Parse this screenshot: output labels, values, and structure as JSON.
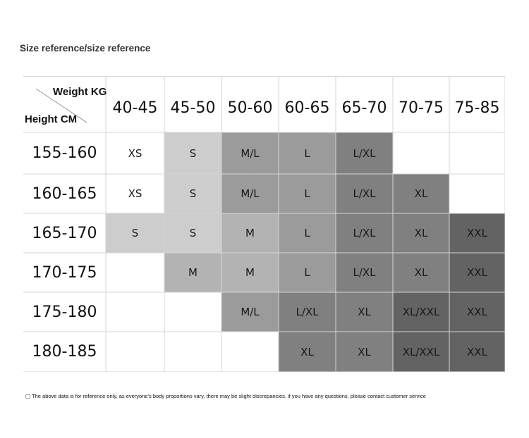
{
  "title": "Size reference/size reference",
  "corner": {
    "weight_label": "Weight KG",
    "height_label": "Height CM"
  },
  "columns": [
    "40-45",
    "45-50",
    "50-60",
    "60-65",
    "65-70",
    "70-75",
    "75-85"
  ],
  "rows": [
    {
      "label": "155-160",
      "cells": [
        "XS",
        "S",
        "M/L",
        "L",
        "L/XL",
        "",
        ""
      ]
    },
    {
      "label": "160-165",
      "cells": [
        "XS",
        "S",
        "M/L",
        "L",
        "L/XL",
        "XL",
        ""
      ]
    },
    {
      "label": "165-170",
      "cells": [
        "S",
        "S",
        "M",
        "L",
        "L/XL",
        "XL",
        "XXL"
      ]
    },
    {
      "label": "170-175",
      "cells": [
        "",
        "M",
        "M",
        "L",
        "L/XL",
        "XL",
        "XXL"
      ]
    },
    {
      "label": "175-180",
      "cells": [
        "",
        "",
        "M/L",
        "L/XL",
        "XL",
        "XL/XXL",
        "XXL"
      ]
    },
    {
      "label": "180-185",
      "cells": [
        "",
        "",
        "",
        "XL",
        "XL",
        "XL/XXL",
        "XXL"
      ]
    }
  ],
  "colors": {
    "S": "#cdcdcd",
    "M": "#b3b3b3",
    "L": "#9b9b9b",
    "XL": "#808080",
    "XXL": "#636363",
    "empty": "#ffffff",
    "grid": "#d4d4d4"
  },
  "note": "▢ The above data is for reference only, as everyone's body proportions vary, there may be slight discrepancies. if you have any questions, please contact customer service"
}
